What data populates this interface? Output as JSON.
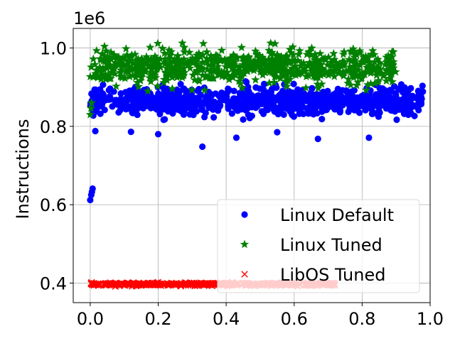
{
  "chart_data": {
    "type": "scatter",
    "title": "",
    "xlabel": "",
    "ylabel": "Instructions",
    "y_offset_label": "1e6",
    "xlim": [
      -0.05,
      1.0
    ],
    "ylim": [
      0.35,
      1.05
    ],
    "x_ticks": [
      0.0,
      0.2,
      0.4,
      0.6,
      0.8,
      1.0
    ],
    "y_ticks": [
      0.4,
      0.6,
      0.8,
      1.0
    ],
    "x_tick_labels": [
      "0.0",
      "0.2",
      "0.4",
      "0.6",
      "0.8",
      "1.0"
    ],
    "y_tick_labels": [
      "0.4",
      "0.6",
      "0.8",
      "1.0"
    ],
    "grid": true,
    "legend_position": "bottom-right",
    "series": [
      {
        "name": "Linux Default",
        "marker": "circle",
        "color": "#0000ff",
        "x_range": [
          0.0,
          0.98
        ],
        "y_typical": [
          0.82,
          0.91
        ],
        "count": 900,
        "outliers": [
          {
            "x": 0.0,
            "y": 0.612
          },
          {
            "x": 0.003,
            "y": 0.625
          },
          {
            "x": 0.005,
            "y": 0.633
          },
          {
            "x": 0.007,
            "y": 0.641
          },
          {
            "x": 0.015,
            "y": 0.788
          },
          {
            "x": 0.12,
            "y": 0.786
          },
          {
            "x": 0.2,
            "y": 0.78
          },
          {
            "x": 0.33,
            "y": 0.748
          },
          {
            "x": 0.43,
            "y": 0.771
          },
          {
            "x": 0.55,
            "y": 0.785
          },
          {
            "x": 0.67,
            "y": 0.768
          },
          {
            "x": 0.82,
            "y": 0.771
          }
        ]
      },
      {
        "name": "Linux Tuned",
        "marker": "star",
        "color": "#008000",
        "x_range": [
          0.0,
          0.9
        ],
        "y_typical": [
          0.9,
          1.005
        ],
        "count": 750,
        "outliers": [
          {
            "x": 0.0,
            "y": 0.83
          },
          {
            "x": 0.002,
            "y": 0.846
          },
          {
            "x": 0.004,
            "y": 0.86
          }
        ]
      },
      {
        "name": "LibOS Tuned",
        "marker": "x",
        "color": "#ff0000",
        "x_range": [
          0.0,
          0.72
        ],
        "y_typical": [
          0.392,
          0.402
        ],
        "count": 600,
        "outliers": []
      }
    ]
  }
}
